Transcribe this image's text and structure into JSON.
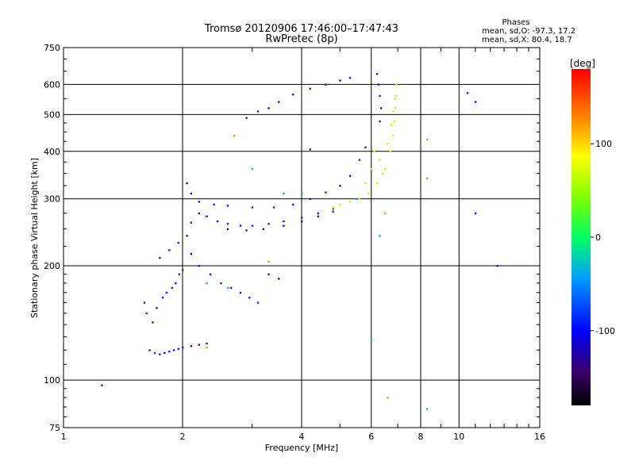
{
  "chart_data": {
    "type": "scatter",
    "title": "Tromsø 20120906 17:46:00–17:47:43",
    "subtitle": "RwPretec (8p)",
    "xlabel": "Frequency [MHz]",
    "ylabel": "Stationary phase Virtual Height [km]",
    "x_scale": "log",
    "y_scale": "log",
    "xlim": [
      1,
      16
    ],
    "ylim": [
      75,
      750
    ],
    "x_ticks": [
      1,
      2,
      4,
      6,
      8,
      10,
      16
    ],
    "x_tick_labels": [
      "1",
      "2",
      "4",
      "6",
      "8",
      "10",
      "16"
    ],
    "y_ticks": [
      75,
      100,
      200,
      300,
      400,
      500,
      600,
      750
    ],
    "y_tick_labels": [
      "75",
      "100",
      "200",
      "300",
      "400",
      "500",
      "600",
      "750"
    ],
    "grid": true,
    "phase_info": {
      "title": "Phases",
      "line_o": "mean, sd,O: -97.3, 17.2",
      "line_x": "mean, sd,X:  80.4, 18.7"
    },
    "colorbar": {
      "label": "[deg]",
      "range": [
        -180,
        180
      ],
      "ticks": [
        100,
        0,
        -100
      ],
      "tick_labels": [
        "100",
        "0",
        "-100"
      ],
      "colormap": "rainbow-black-to-red"
    },
    "series": [
      {
        "color_hint": "blue",
        "phase": -100,
        "points": [
          [
            1.65,
            120
          ],
          [
            1.7,
            118
          ],
          [
            1.75,
            117
          ],
          [
            1.8,
            118
          ],
          [
            1.85,
            119
          ],
          [
            1.9,
            120
          ],
          [
            1.95,
            121
          ],
          [
            2.0,
            122
          ],
          [
            2.1,
            123
          ],
          [
            2.2,
            124
          ],
          [
            2.3,
            125
          ],
          [
            1.6,
            160
          ],
          [
            1.62,
            150
          ],
          [
            1.68,
            142
          ],
          [
            1.72,
            155
          ],
          [
            1.78,
            165
          ],
          [
            1.82,
            170
          ],
          [
            1.88,
            175
          ],
          [
            1.92,
            180
          ],
          [
            1.96,
            190
          ],
          [
            2.0,
            195
          ],
          [
            2.05,
            240
          ],
          [
            2.1,
            260
          ],
          [
            2.2,
            275
          ],
          [
            2.3,
            270
          ],
          [
            2.45,
            262
          ],
          [
            2.6,
            258
          ],
          [
            2.8,
            255
          ],
          [
            3.0,
            255
          ],
          [
            3.3,
            258
          ],
          [
            3.6,
            262
          ],
          [
            4.0,
            268
          ],
          [
            4.4,
            275
          ],
          [
            4.8,
            283
          ],
          [
            2.05,
            330
          ],
          [
            2.1,
            310
          ],
          [
            2.2,
            295
          ],
          [
            2.4,
            290
          ],
          [
            2.6,
            288
          ],
          [
            3.0,
            285
          ],
          [
            3.4,
            285
          ],
          [
            3.8,
            290
          ],
          [
            4.2,
            300
          ],
          [
            4.6,
            312
          ],
          [
            5.0,
            325
          ],
          [
            5.3,
            345
          ],
          [
            5.6,
            380
          ],
          [
            5.8,
            410
          ],
          [
            2.9,
            490
          ],
          [
            3.1,
            510
          ],
          [
            3.3,
            520
          ],
          [
            3.5,
            540
          ],
          [
            3.8,
            565
          ],
          [
            4.2,
            585
          ],
          [
            4.6,
            600
          ],
          [
            5.0,
            615
          ],
          [
            5.3,
            625
          ],
          [
            6.2,
            640
          ],
          [
            6.25,
            600
          ],
          [
            6.3,
            560
          ],
          [
            6.35,
            520
          ],
          [
            6.3,
            480
          ],
          [
            1.75,
            210
          ],
          [
            1.85,
            220
          ],
          [
            1.95,
            230
          ],
          [
            2.1,
            215
          ],
          [
            2.2,
            200
          ],
          [
            2.35,
            190
          ],
          [
            2.5,
            180
          ],
          [
            2.65,
            175
          ],
          [
            2.8,
            170
          ],
          [
            2.95,
            165
          ],
          [
            3.1,
            160
          ],
          [
            10.5,
            570
          ],
          [
            11.0,
            540
          ],
          [
            11.0,
            275
          ],
          [
            12.5,
            200
          ],
          [
            1.25,
            97
          ]
        ]
      },
      {
        "color_hint": "indigo",
        "phase": -120,
        "points": [
          [
            2.6,
            250
          ],
          [
            2.9,
            248
          ],
          [
            3.2,
            250
          ],
          [
            3.6,
            255
          ],
          [
            4.0,
            262
          ],
          [
            4.4,
            270
          ],
          [
            4.8,
            278
          ],
          [
            3.3,
            190
          ],
          [
            3.5,
            185
          ],
          [
            4.2,
            405
          ]
        ]
      },
      {
        "color_hint": "yellow",
        "phase": 100,
        "points": [
          [
            4.8,
            285
          ],
          [
            5.0,
            290
          ],
          [
            5.3,
            295
          ],
          [
            5.6,
            300
          ],
          [
            5.9,
            310
          ],
          [
            6.2,
            330
          ],
          [
            6.5,
            360
          ],
          [
            6.7,
            400
          ],
          [
            6.8,
            440
          ],
          [
            6.85,
            480
          ],
          [
            6.9,
            520
          ],
          [
            6.92,
            560
          ],
          [
            6.95,
            600
          ],
          [
            6.3,
            380
          ],
          [
            6.4,
            350
          ],
          [
            6.6,
            420
          ],
          [
            6.75,
            470
          ],
          [
            6.82,
            510
          ],
          [
            6.88,
            550
          ],
          [
            5.8,
            330
          ],
          [
            6.0,
            360
          ],
          [
            6.1,
            400
          ]
        ]
      },
      {
        "color_hint": "cyan",
        "phase": -40,
        "points": [
          [
            3.0,
            360
          ],
          [
            3.6,
            310
          ],
          [
            4.0,
            310
          ],
          [
            5.5,
            300
          ],
          [
            6.3,
            240
          ],
          [
            6.0,
            128
          ],
          [
            8.3,
            84
          ],
          [
            2.3,
            180
          ],
          [
            2.6,
            175
          ]
        ]
      },
      {
        "color_hint": "orange",
        "phase": 140,
        "points": [
          [
            2.7,
            440
          ],
          [
            6.5,
            275
          ],
          [
            8.3,
            430
          ],
          [
            8.3,
            340
          ],
          [
            6.6,
            90
          ],
          [
            2.3,
            122
          ],
          [
            3.3,
            205
          ]
        ]
      }
    ]
  }
}
